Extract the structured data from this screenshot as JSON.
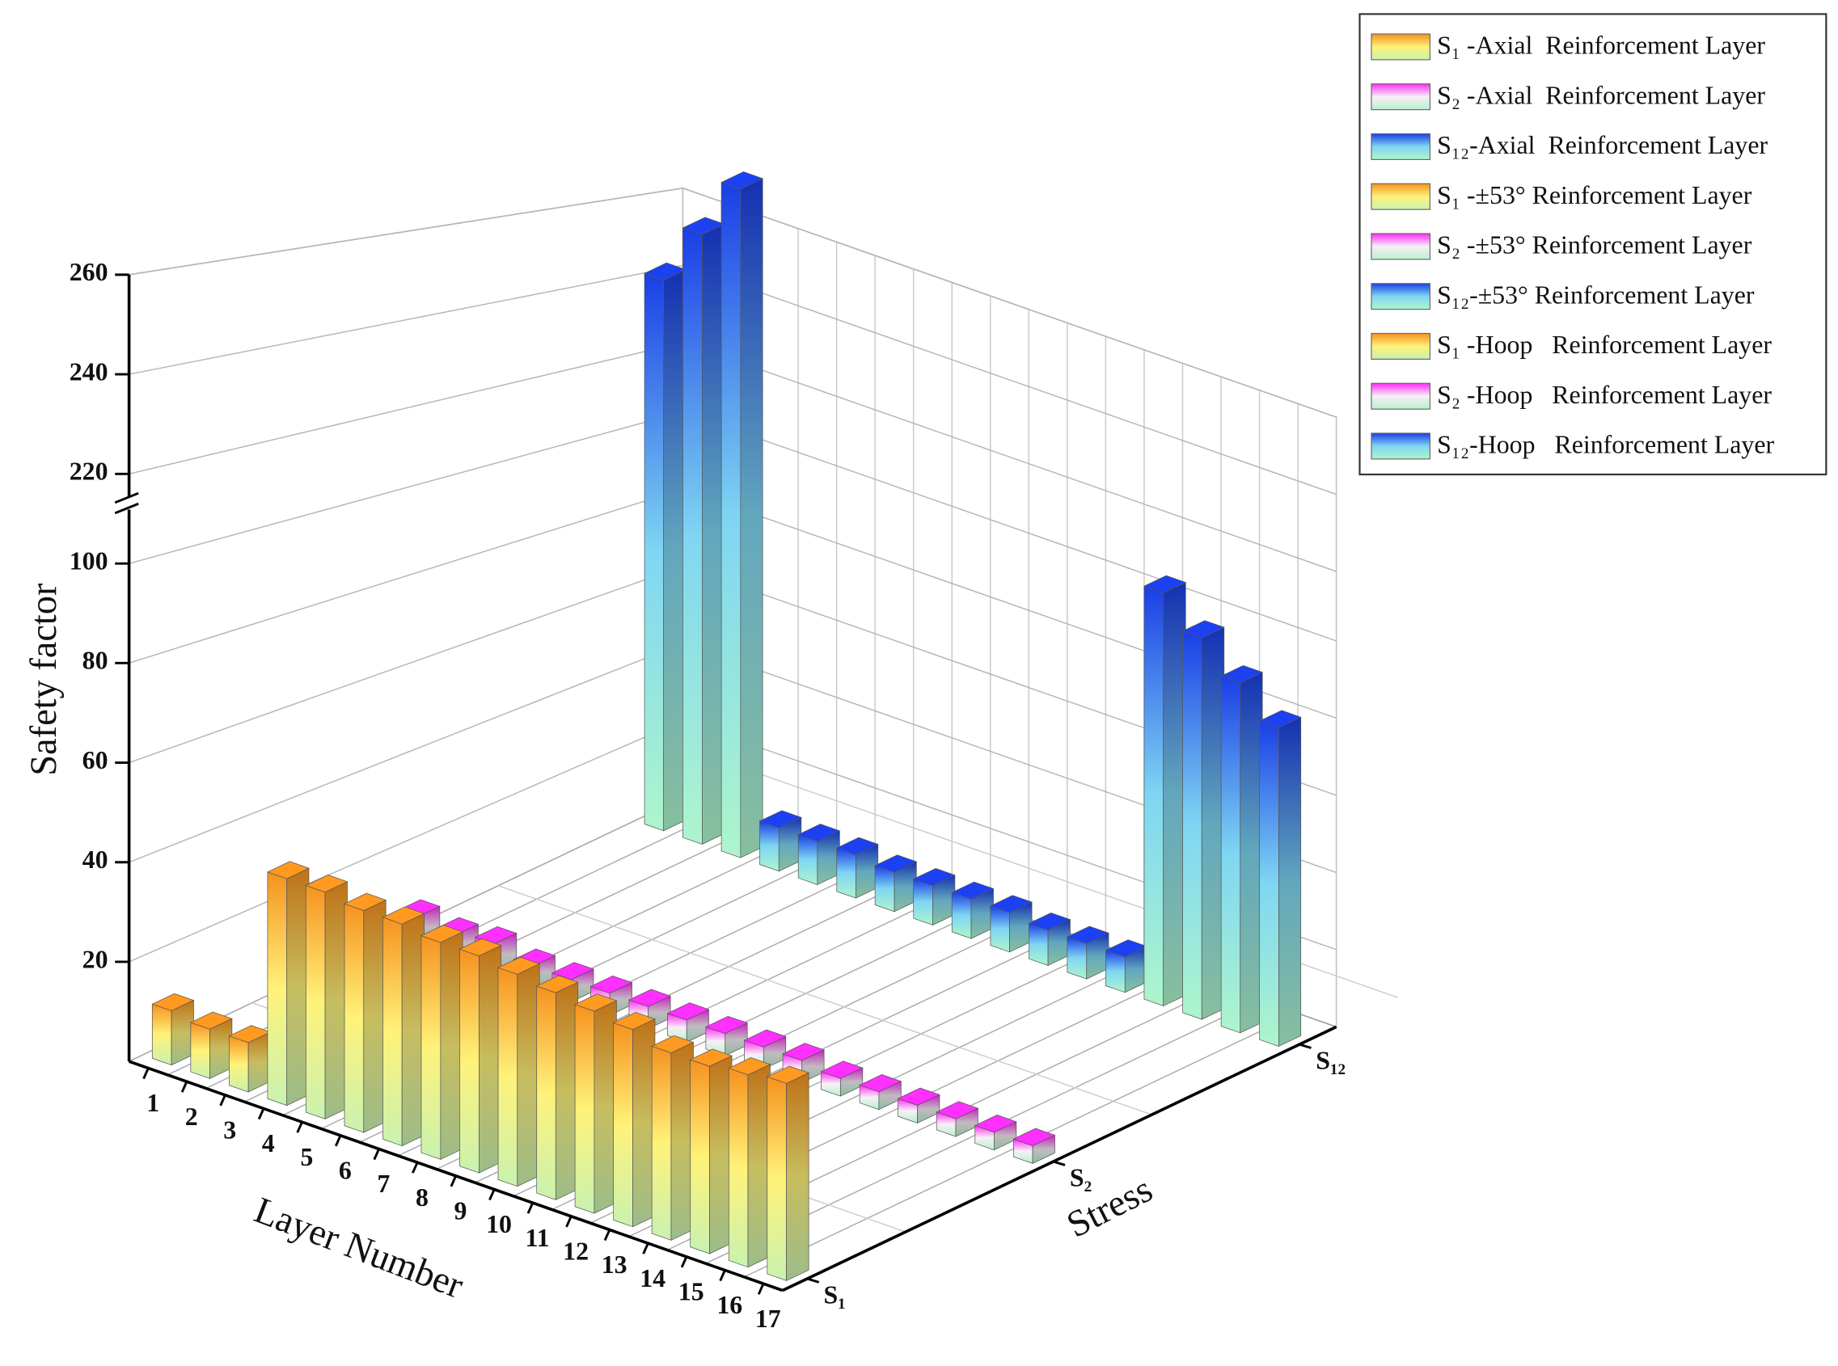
{
  "chart_data": {
    "type": "bar3d",
    "y_label": "Safety factor",
    "x_label": "Layer Number",
    "z_label": "Stress",
    "categories": [
      "1",
      "2",
      "3",
      "4",
      "5",
      "6",
      "7",
      "8",
      "9",
      "10",
      "11",
      "12",
      "13",
      "14",
      "15",
      "16",
      "17"
    ],
    "z_categories": [
      "S₁",
      "S₂",
      "S₁₂"
    ],
    "ylim": [
      0,
      260
    ],
    "yticks": [
      20,
      40,
      60,
      80,
      100,
      220,
      240,
      260
    ],
    "ybreak": [
      112,
      214
    ],
    "grid": true,
    "series": [
      {
        "name": "S₁ -Axial  Reinforcement Layer",
        "stress": 0,
        "colors": [
          "#f5921e",
          "#fff27a",
          "#c9f2b0"
        ],
        "values": [
          11,
          10,
          10,
          null,
          null,
          null,
          null,
          null,
          null,
          null,
          null,
          null,
          null,
          null,
          null,
          null,
          null
        ]
      },
      {
        "name": "S₂ -Axial  Reinforcement Layer",
        "stress": 1,
        "colors": [
          "#ff2df5",
          "#f6f0f6",
          "#b9f0cc"
        ],
        "values": [
          7,
          6,
          7,
          null,
          null,
          null,
          null,
          null,
          null,
          null,
          null,
          null,
          null,
          null,
          null,
          null,
          null
        ]
      },
      {
        "name": "S₁₂-Axial  Reinforcement Layer",
        "stress": 2,
        "colors": [
          "#1a3ee6",
          "#7fd6f2",
          "#aef5cc"
        ],
        "values": [
          242,
          257,
          272,
          null,
          null,
          null,
          null,
          null,
          null,
          null,
          null,
          null,
          null,
          null,
          null,
          null,
          null
        ]
      },
      {
        "name": "S₁ -±53° Reinforcement Layer",
        "stress": 0,
        "colors": [
          "#f5921e",
          "#fff27a",
          "#c9f2b0"
        ],
        "values": [
          null,
          null,
          null,
          46,
          46,
          45,
          45,
          44,
          44,
          43,
          42,
          41,
          40,
          null,
          null,
          null,
          null
        ]
      },
      {
        "name": "S₂ -±53° Reinforcement Layer",
        "stress": 1,
        "colors": [
          "#ff2df5",
          "#f6f0f6",
          "#b9f0cc"
        ],
        "values": [
          null,
          null,
          null,
          5,
          5,
          5,
          5,
          5,
          5,
          5,
          5,
          4,
          4,
          null,
          null,
          null,
          null
        ]
      },
      {
        "name": "S₁₂-±53° Reinforcement Layer",
        "stress": 2,
        "colors": [
          "#1a3ee6",
          "#7fd6f2",
          "#aef5cc"
        ],
        "values": [
          null,
          null,
          null,
          11,
          11,
          11,
          10,
          10,
          10,
          10,
          9,
          9,
          9,
          null,
          null,
          null,
          null
        ]
      },
      {
        "name": "S₁ -Hoop   Reinforcement Layer",
        "stress": 0,
        "colors": [
          "#f5921e",
          "#fff27a",
          "#c9f2b0"
        ],
        "values": [
          null,
          null,
          null,
          null,
          null,
          null,
          null,
          null,
          null,
          null,
          null,
          null,
          null,
          38,
          38,
          39,
          40
        ]
      },
      {
        "name": "S₂ -Hoop   Reinforcement Layer",
        "stress": 1,
        "colors": [
          "#ff2df5",
          "#f6f0f6",
          "#b9f0cc"
        ],
        "values": [
          null,
          null,
          null,
          null,
          null,
          null,
          null,
          null,
          null,
          null,
          null,
          null,
          null,
          4,
          4,
          4,
          4
        ]
      },
      {
        "name": "S₁₂-Hoop   Reinforcement Layer",
        "stress": 2,
        "colors": [
          "#1a3ee6",
          "#7fd6f2",
          "#aef5cc"
        ],
        "values": [
          null,
          null,
          null,
          null,
          null,
          null,
          null,
          null,
          null,
          null,
          null,
          null,
          null,
          105,
          97,
          89,
          81
        ]
      }
    ]
  }
}
